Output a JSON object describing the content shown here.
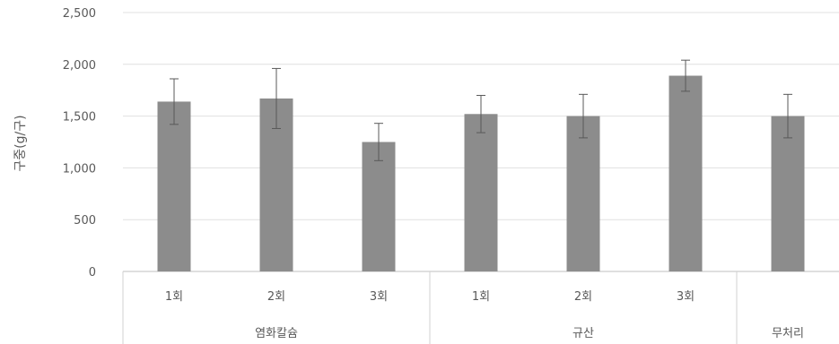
{
  "chart_data": {
    "type": "bar",
    "ylabel": "구중(g/구)",
    "ylim": [
      0,
      2500
    ],
    "yticks": [
      0,
      500,
      1000,
      1500,
      2000,
      2500
    ],
    "ytick_labels": [
      "0",
      "500",
      "1,000",
      "1,500",
      "2,000",
      "2,500"
    ],
    "grid": "horizontal",
    "legend": "none",
    "bar_color": "#8c8c8c",
    "categories": [
      {
        "label": "1회",
        "group": "염화칼슘",
        "value": 1640,
        "err": 220
      },
      {
        "label": "2회",
        "group": "염화칼슘",
        "value": 1670,
        "err": 290
      },
      {
        "label": "3회",
        "group": "염화칼슘",
        "value": 1250,
        "err": 180
      },
      {
        "label": "1회",
        "group": "규산",
        "value": 1520,
        "err": 180
      },
      {
        "label": "2회",
        "group": "규산",
        "value": 1500,
        "err": 210
      },
      {
        "label": "3회",
        "group": "규산",
        "value": 1890,
        "err": 150
      },
      {
        "label": "",
        "group": "무처리",
        "value": 1500,
        "err": 210
      }
    ],
    "groups": [
      {
        "label": "염화칼슘",
        "count": 3
      },
      {
        "label": "규산",
        "count": 3
      },
      {
        "label": "무처리",
        "count": 1
      }
    ]
  }
}
